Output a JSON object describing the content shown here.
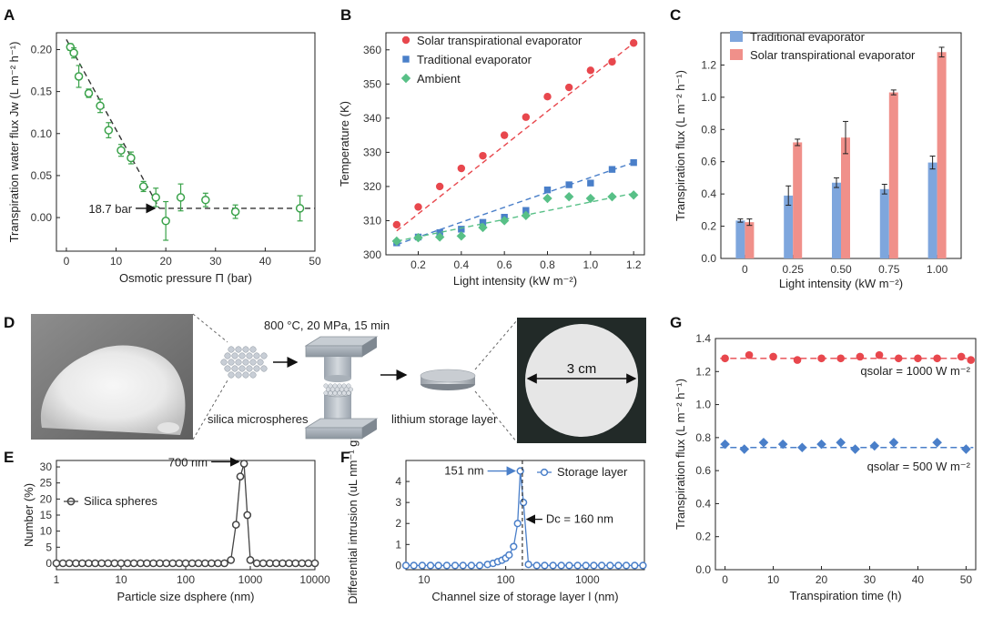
{
  "panels": {
    "A": {
      "label": "A"
    },
    "B": {
      "label": "B"
    },
    "C": {
      "label": "C"
    },
    "D": {
      "label": "D"
    },
    "E": {
      "label": "E"
    },
    "F": {
      "label": "F"
    },
    "G": {
      "label": "G"
    }
  },
  "chart_data": [
    {
      "id": "A",
      "type": "scatter",
      "xlabel": "Osmotic pressure Π (bar)",
      "ylabel": "Transpiration water flux Jw (L m⁻² h⁻¹)",
      "xlim": [
        -2,
        50
      ],
      "ylim": [
        -0.04,
        0.22
      ],
      "xticks": [
        0,
        10,
        20,
        30,
        40,
        50
      ],
      "yticks": [
        0.0,
        0.05,
        0.1,
        0.15,
        0.2
      ],
      "ytick_labels": [
        "0.00",
        "0.05",
        "0.10",
        "0.15",
        "0.20"
      ],
      "x": [
        0.8,
        1.5,
        2.5,
        4.5,
        6.8,
        8.5,
        11,
        13,
        15.5,
        18,
        20,
        23,
        28,
        34,
        47
      ],
      "y": [
        0.203,
        0.196,
        0.168,
        0.148,
        0.133,
        0.104,
        0.08,
        0.071,
        0.037,
        0.024,
        -0.004,
        0.024,
        0.021,
        0.007,
        0.011
      ],
      "err": [
        0.004,
        0.006,
        0.013,
        0.005,
        0.008,
        0.009,
        0.007,
        0.007,
        0.006,
        0.011,
        0.023,
        0.016,
        0.008,
        0.008,
        0.015
      ],
      "fit_lines": [
        [
          [
            0,
            0.212
          ],
          [
            18.7,
            0.011
          ]
        ],
        [
          [
            18.7,
            0.011
          ],
          [
            50,
            0.011
          ]
        ]
      ],
      "annotation": "18.7 bar",
      "color": "#3aa24a"
    },
    {
      "id": "B",
      "type": "scatter",
      "xlabel": "Light intensity (kW m⁻²)",
      "ylabel": "Temperature (K)",
      "xlim": [
        0.05,
        1.25
      ],
      "ylim": [
        300,
        365
      ],
      "xticks": [
        0.2,
        0.4,
        0.6,
        0.8,
        1.0,
        1.2
      ],
      "xtick_labels": [
        "0.2",
        "0.4",
        "0.6",
        "0.8",
        "1.0",
        "1.2"
      ],
      "yticks": [
        300,
        310,
        320,
        330,
        340,
        350,
        360
      ],
      "series": [
        {
          "name": "Solar transpirational evaporator",
          "color": "#e8474d",
          "marker": "circle",
          "x": [
            0.1,
            0.2,
            0.3,
            0.4,
            0.5,
            0.6,
            0.7,
            0.8,
            0.9,
            1.0,
            1.1,
            1.2
          ],
          "y": [
            308.8,
            314,
            320,
            325.3,
            329,
            335,
            340.3,
            346.3,
            349,
            354,
            356.5,
            362
          ],
          "fit": [
            [
              0.1,
              307
            ],
            [
              1.2,
              362
            ]
          ]
        },
        {
          "name": "Traditional evaporator",
          "color": "#4a7fc9",
          "marker": "square",
          "x": [
            0.1,
            0.2,
            0.3,
            0.4,
            0.5,
            0.6,
            0.7,
            0.8,
            0.9,
            1.0,
            1.1,
            1.2
          ],
          "y": [
            303.5,
            305.2,
            306.5,
            307.5,
            309.5,
            311,
            313,
            319,
            320.5,
            321,
            325,
            327
          ],
          "fit": [
            [
              0.1,
              303
            ],
            [
              1.2,
              327
            ]
          ]
        },
        {
          "name": "Ambient",
          "color": "#58c087",
          "marker": "diamond",
          "x": [
            0.1,
            0.2,
            0.3,
            0.4,
            0.5,
            0.6,
            0.7,
            0.8,
            0.9,
            1.0,
            1.1,
            1.2
          ],
          "y": [
            304,
            305,
            305.2,
            305.5,
            308,
            310,
            311.5,
            316.5,
            317,
            316.5,
            317,
            317.5
          ],
          "fit": [
            [
              0.1,
              304
            ],
            [
              1.2,
              318
            ]
          ]
        }
      ]
    },
    {
      "id": "C",
      "type": "bar",
      "xlabel": "Light intensity (kW m⁻²)",
      "ylabel": "Transpiration flux (L m⁻² h⁻¹)",
      "categories": [
        "0",
        "0.25",
        "0.50",
        "0.75",
        "1.00"
      ],
      "ylim": [
        0,
        1.4
      ],
      "yticks": [
        0.0,
        0.2,
        0.4,
        0.6,
        0.8,
        1.0,
        1.2
      ],
      "ytick_labels": [
        "0.0",
        "0.2",
        "0.4",
        "0.6",
        "0.8",
        "1.0",
        "1.2"
      ],
      "series": [
        {
          "name": "Traditional evaporator",
          "color": "#7ea6dd",
          "values": [
            0.235,
            0.39,
            0.47,
            0.43,
            0.595
          ],
          "err": [
            0.01,
            0.06,
            0.03,
            0.03,
            0.04
          ]
        },
        {
          "name": "Solar transpirational evaporator",
          "color": "#f0908a",
          "values": [
            0.225,
            0.72,
            0.75,
            1.03,
            1.28
          ],
          "err": [
            0.02,
            0.02,
            0.1,
            0.015,
            0.03
          ]
        }
      ]
    },
    {
      "id": "E",
      "type": "line",
      "xlabel": "Particle size dsphere (nm)",
      "ylabel": "Number (%)",
      "xscale": "log",
      "xlim": [
        1,
        10000
      ],
      "ylim": [
        -2,
        32
      ],
      "xticks": [
        1,
        10,
        100,
        1000,
        10000
      ],
      "xtick_labels": [
        "1",
        "10",
        "100",
        "1000",
        "10000"
      ],
      "yticks": [
        0,
        5,
        10,
        15,
        20,
        25,
        30
      ],
      "series": [
        {
          "name": "Silica spheres",
          "color": "#444444",
          "x": [
            1,
            1.26,
            1.58,
            2,
            2.51,
            3.16,
            3.98,
            5.01,
            6.31,
            7.94,
            10,
            12.6,
            15.8,
            20,
            25.1,
            31.6,
            39.8,
            50.1,
            63.1,
            79.4,
            100,
            126,
            158,
            200,
            251,
            316,
            398,
            501,
            600,
            700,
            800,
            900,
            1000,
            1260,
            1580,
            2000,
            2510,
            3160,
            3980,
            5010,
            6310,
            7940,
            10000
          ],
          "y": [
            0,
            0,
            0,
            0,
            0,
            0,
            0,
            0,
            0,
            0,
            0,
            0,
            0,
            0,
            0,
            0,
            0,
            0,
            0,
            0,
            0,
            0,
            0,
            0,
            0,
            0,
            0,
            1,
            12,
            27,
            31,
            15,
            1,
            0,
            0,
            0,
            0,
            0,
            0,
            0,
            0,
            0,
            0
          ]
        }
      ],
      "annotation": "700 nm"
    },
    {
      "id": "F",
      "type": "line",
      "xlabel": "Channel size of storage layer l (nm)",
      "ylabel": "Differential intrusion (uL nm⁻¹ g⁻¹)",
      "xscale": "log",
      "xlim": [
        6,
        5000
      ],
      "ylim": [
        -0.2,
        5
      ],
      "xticks": [
        10,
        100,
        1000
      ],
      "xtick_labels": [
        "10",
        "100",
        "1000"
      ],
      "yticks": [
        0,
        1,
        2,
        3,
        4
      ],
      "series": [
        {
          "name": "Storage layer",
          "color": "#4a7fc9",
          "x": [
            6,
            7.5,
            9.5,
            12,
            15,
            19,
            24,
            30,
            38,
            48,
            60,
            70,
            80,
            90,
            100,
            110,
            125,
            140,
            151,
            165,
            190,
            240,
            300,
            380,
            480,
            600,
            760,
            960,
            1200,
            1500,
            1900,
            2400,
            3000,
            3800,
            4800
          ],
          "y": [
            0,
            0,
            0,
            0,
            0,
            0,
            0,
            0,
            0,
            0,
            0.05,
            0.1,
            0.18,
            0.25,
            0.35,
            0.5,
            0.9,
            2.0,
            4.5,
            3.0,
            0.05,
            0,
            0,
            0,
            0,
            0,
            0,
            0,
            0,
            0,
            0,
            0,
            0,
            0,
            0
          ]
        }
      ],
      "annotations": [
        "151 nm",
        "Dc = 160 nm"
      ]
    },
    {
      "id": "G",
      "type": "scatter",
      "xlabel": "Transpiration time (h)",
      "ylabel": "Transpiration flux (L m⁻² h⁻¹)",
      "xlim": [
        -2,
        52
      ],
      "ylim": [
        0,
        1.4
      ],
      "xticks": [
        0,
        10,
        20,
        30,
        40,
        50
      ],
      "yticks": [
        0.0,
        0.2,
        0.4,
        0.6,
        0.8,
        1.0,
        1.2,
        1.4
      ],
      "ytick_labels": [
        "0.0",
        "0.2",
        "0.4",
        "0.6",
        "0.8",
        "1.0",
        "1.2",
        "1.4"
      ],
      "series": [
        {
          "name": "qsolar = 1000 W m⁻²",
          "color": "#e8474d",
          "marker": "circle",
          "x": [
            0,
            5,
            10,
            15,
            20,
            24,
            28,
            32,
            36,
            40,
            44,
            49,
            51
          ],
          "y": [
            1.28,
            1.3,
            1.29,
            1.27,
            1.28,
            1.28,
            1.29,
            1.3,
            1.28,
            1.28,
            1.28,
            1.29,
            1.27
          ],
          "mean": 1.28
        },
        {
          "name": "qsolar = 500 W m⁻²",
          "color": "#4a7fc9",
          "marker": "diamond",
          "x": [
            0,
            4,
            8,
            12,
            16,
            20,
            24,
            27,
            31,
            35,
            44,
            50
          ],
          "y": [
            0.76,
            0.73,
            0.77,
            0.76,
            0.74,
            0.76,
            0.77,
            0.73,
            0.75,
            0.77,
            0.77,
            0.73
          ],
          "mean": 0.74
        }
      ]
    }
  ],
  "panelD": {
    "conditions": "800 °C, 20 MPa, 15 min",
    "microspheres_label": "silica microspheres",
    "storage_label": "lithium storage layer",
    "scale_label": "3 cm"
  }
}
